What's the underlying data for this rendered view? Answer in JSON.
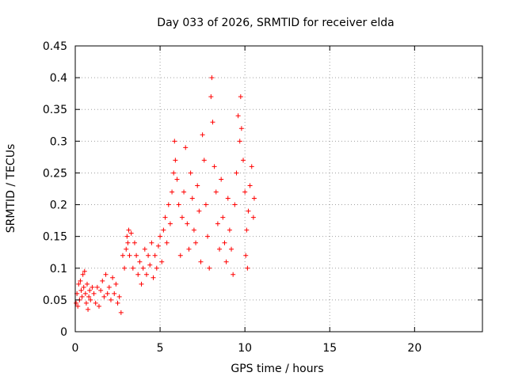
{
  "chart_data": {
    "type": "scatter",
    "title": "Day 033 of 2026, SRMTID for receiver elda",
    "xlabel": "GPS time / hours",
    "ylabel": "SRMTID / TECUs",
    "xlim": [
      0,
      24
    ],
    "ylim": [
      0,
      0.45
    ],
    "xticks": [
      0,
      5,
      10,
      15,
      20
    ],
    "xtick_labels": [
      "0",
      "5",
      "10",
      "15",
      "20"
    ],
    "yticks": [
      0,
      0.05,
      0.1,
      0.15,
      0.2,
      0.25,
      0.3,
      0.35,
      0.4,
      0.45
    ],
    "ytick_labels": [
      "0",
      "0.05",
      "0.1",
      "0.15",
      "0.2",
      "0.25",
      "0.3",
      "0.35",
      "0.4",
      "0.45"
    ],
    "grid": true,
    "marker": "+",
    "color": "#ff0000",
    "series": [
      {
        "name": "SRMTID",
        "points": [
          [
            0.05,
            0.045
          ],
          [
            0.1,
            0.06
          ],
          [
            0.15,
            0.04
          ],
          [
            0.2,
            0.075
          ],
          [
            0.25,
            0.05
          ],
          [
            0.3,
            0.08
          ],
          [
            0.35,
            0.065
          ],
          [
            0.4,
            0.055
          ],
          [
            0.45,
            0.09
          ],
          [
            0.5,
            0.07
          ],
          [
            0.55,
            0.095
          ],
          [
            0.6,
            0.06
          ],
          [
            0.65,
            0.045
          ],
          [
            0.7,
            0.075
          ],
          [
            0.75,
            0.035
          ],
          [
            0.8,
            0.055
          ],
          [
            0.85,
            0.065
          ],
          [
            0.9,
            0.05
          ],
          [
            1.0,
            0.07
          ],
          [
            1.1,
            0.06
          ],
          [
            1.2,
            0.045
          ],
          [
            1.3,
            0.07
          ],
          [
            1.4,
            0.04
          ],
          [
            1.5,
            0.065
          ],
          [
            1.6,
            0.08
          ],
          [
            1.7,
            0.055
          ],
          [
            1.8,
            0.09
          ],
          [
            1.9,
            0.06
          ],
          [
            2.0,
            0.07
          ],
          [
            2.1,
            0.05
          ],
          [
            2.2,
            0.085
          ],
          [
            2.3,
            0.06
          ],
          [
            2.4,
            0.075
          ],
          [
            2.5,
            0.045
          ],
          [
            2.6,
            0.055
          ],
          [
            2.7,
            0.03
          ],
          [
            2.8,
            0.12
          ],
          [
            2.9,
            0.1
          ],
          [
            3.0,
            0.13
          ],
          [
            3.05,
            0.15
          ],
          [
            3.1,
            0.14
          ],
          [
            3.15,
            0.16
          ],
          [
            3.2,
            0.12
          ],
          [
            3.3,
            0.155
          ],
          [
            3.4,
            0.1
          ],
          [
            3.5,
            0.14
          ],
          [
            3.6,
            0.12
          ],
          [
            3.7,
            0.09
          ],
          [
            3.8,
            0.11
          ],
          [
            3.9,
            0.075
          ],
          [
            4.0,
            0.1
          ],
          [
            4.1,
            0.13
          ],
          [
            4.2,
            0.09
          ],
          [
            4.3,
            0.12
          ],
          [
            4.4,
            0.105
          ],
          [
            4.5,
            0.14
          ],
          [
            4.6,
            0.085
          ],
          [
            4.7,
            0.12
          ],
          [
            4.8,
            0.1
          ],
          [
            4.9,
            0.135
          ],
          [
            5.0,
            0.15
          ],
          [
            5.1,
            0.11
          ],
          [
            5.2,
            0.16
          ],
          [
            5.3,
            0.18
          ],
          [
            5.4,
            0.14
          ],
          [
            5.5,
            0.2
          ],
          [
            5.6,
            0.17
          ],
          [
            5.7,
            0.22
          ],
          [
            5.8,
            0.25
          ],
          [
            5.85,
            0.3
          ],
          [
            5.9,
            0.27
          ],
          [
            6.0,
            0.24
          ],
          [
            6.1,
            0.2
          ],
          [
            6.2,
            0.12
          ],
          [
            6.3,
            0.18
          ],
          [
            6.4,
            0.22
          ],
          [
            6.5,
            0.29
          ],
          [
            6.6,
            0.17
          ],
          [
            6.7,
            0.13
          ],
          [
            6.8,
            0.25
          ],
          [
            6.9,
            0.21
          ],
          [
            7.0,
            0.16
          ],
          [
            7.1,
            0.14
          ],
          [
            7.2,
            0.23
          ],
          [
            7.3,
            0.19
          ],
          [
            7.4,
            0.11
          ],
          [
            7.5,
            0.31
          ],
          [
            7.6,
            0.27
          ],
          [
            7.7,
            0.2
          ],
          [
            7.8,
            0.15
          ],
          [
            7.9,
            0.1
          ],
          [
            8.0,
            0.37
          ],
          [
            8.05,
            0.4
          ],
          [
            8.1,
            0.33
          ],
          [
            8.2,
            0.26
          ],
          [
            8.3,
            0.22
          ],
          [
            8.4,
            0.17
          ],
          [
            8.5,
            0.13
          ],
          [
            8.6,
            0.24
          ],
          [
            8.7,
            0.18
          ],
          [
            8.8,
            0.14
          ],
          [
            8.9,
            0.11
          ],
          [
            9.0,
            0.21
          ],
          [
            9.1,
            0.16
          ],
          [
            9.2,
            0.13
          ],
          [
            9.3,
            0.09
          ],
          [
            9.4,
            0.2
          ],
          [
            9.5,
            0.25
          ],
          [
            9.6,
            0.34
          ],
          [
            9.7,
            0.3
          ],
          [
            9.75,
            0.37
          ],
          [
            9.8,
            0.32
          ],
          [
            9.9,
            0.27
          ],
          [
            10.0,
            0.22
          ],
          [
            10.05,
            0.12
          ],
          [
            10.1,
            0.16
          ],
          [
            10.15,
            0.1
          ],
          [
            10.2,
            0.19
          ],
          [
            10.3,
            0.23
          ],
          [
            10.4,
            0.26
          ],
          [
            10.5,
            0.18
          ],
          [
            10.55,
            0.21
          ]
        ]
      }
    ]
  }
}
